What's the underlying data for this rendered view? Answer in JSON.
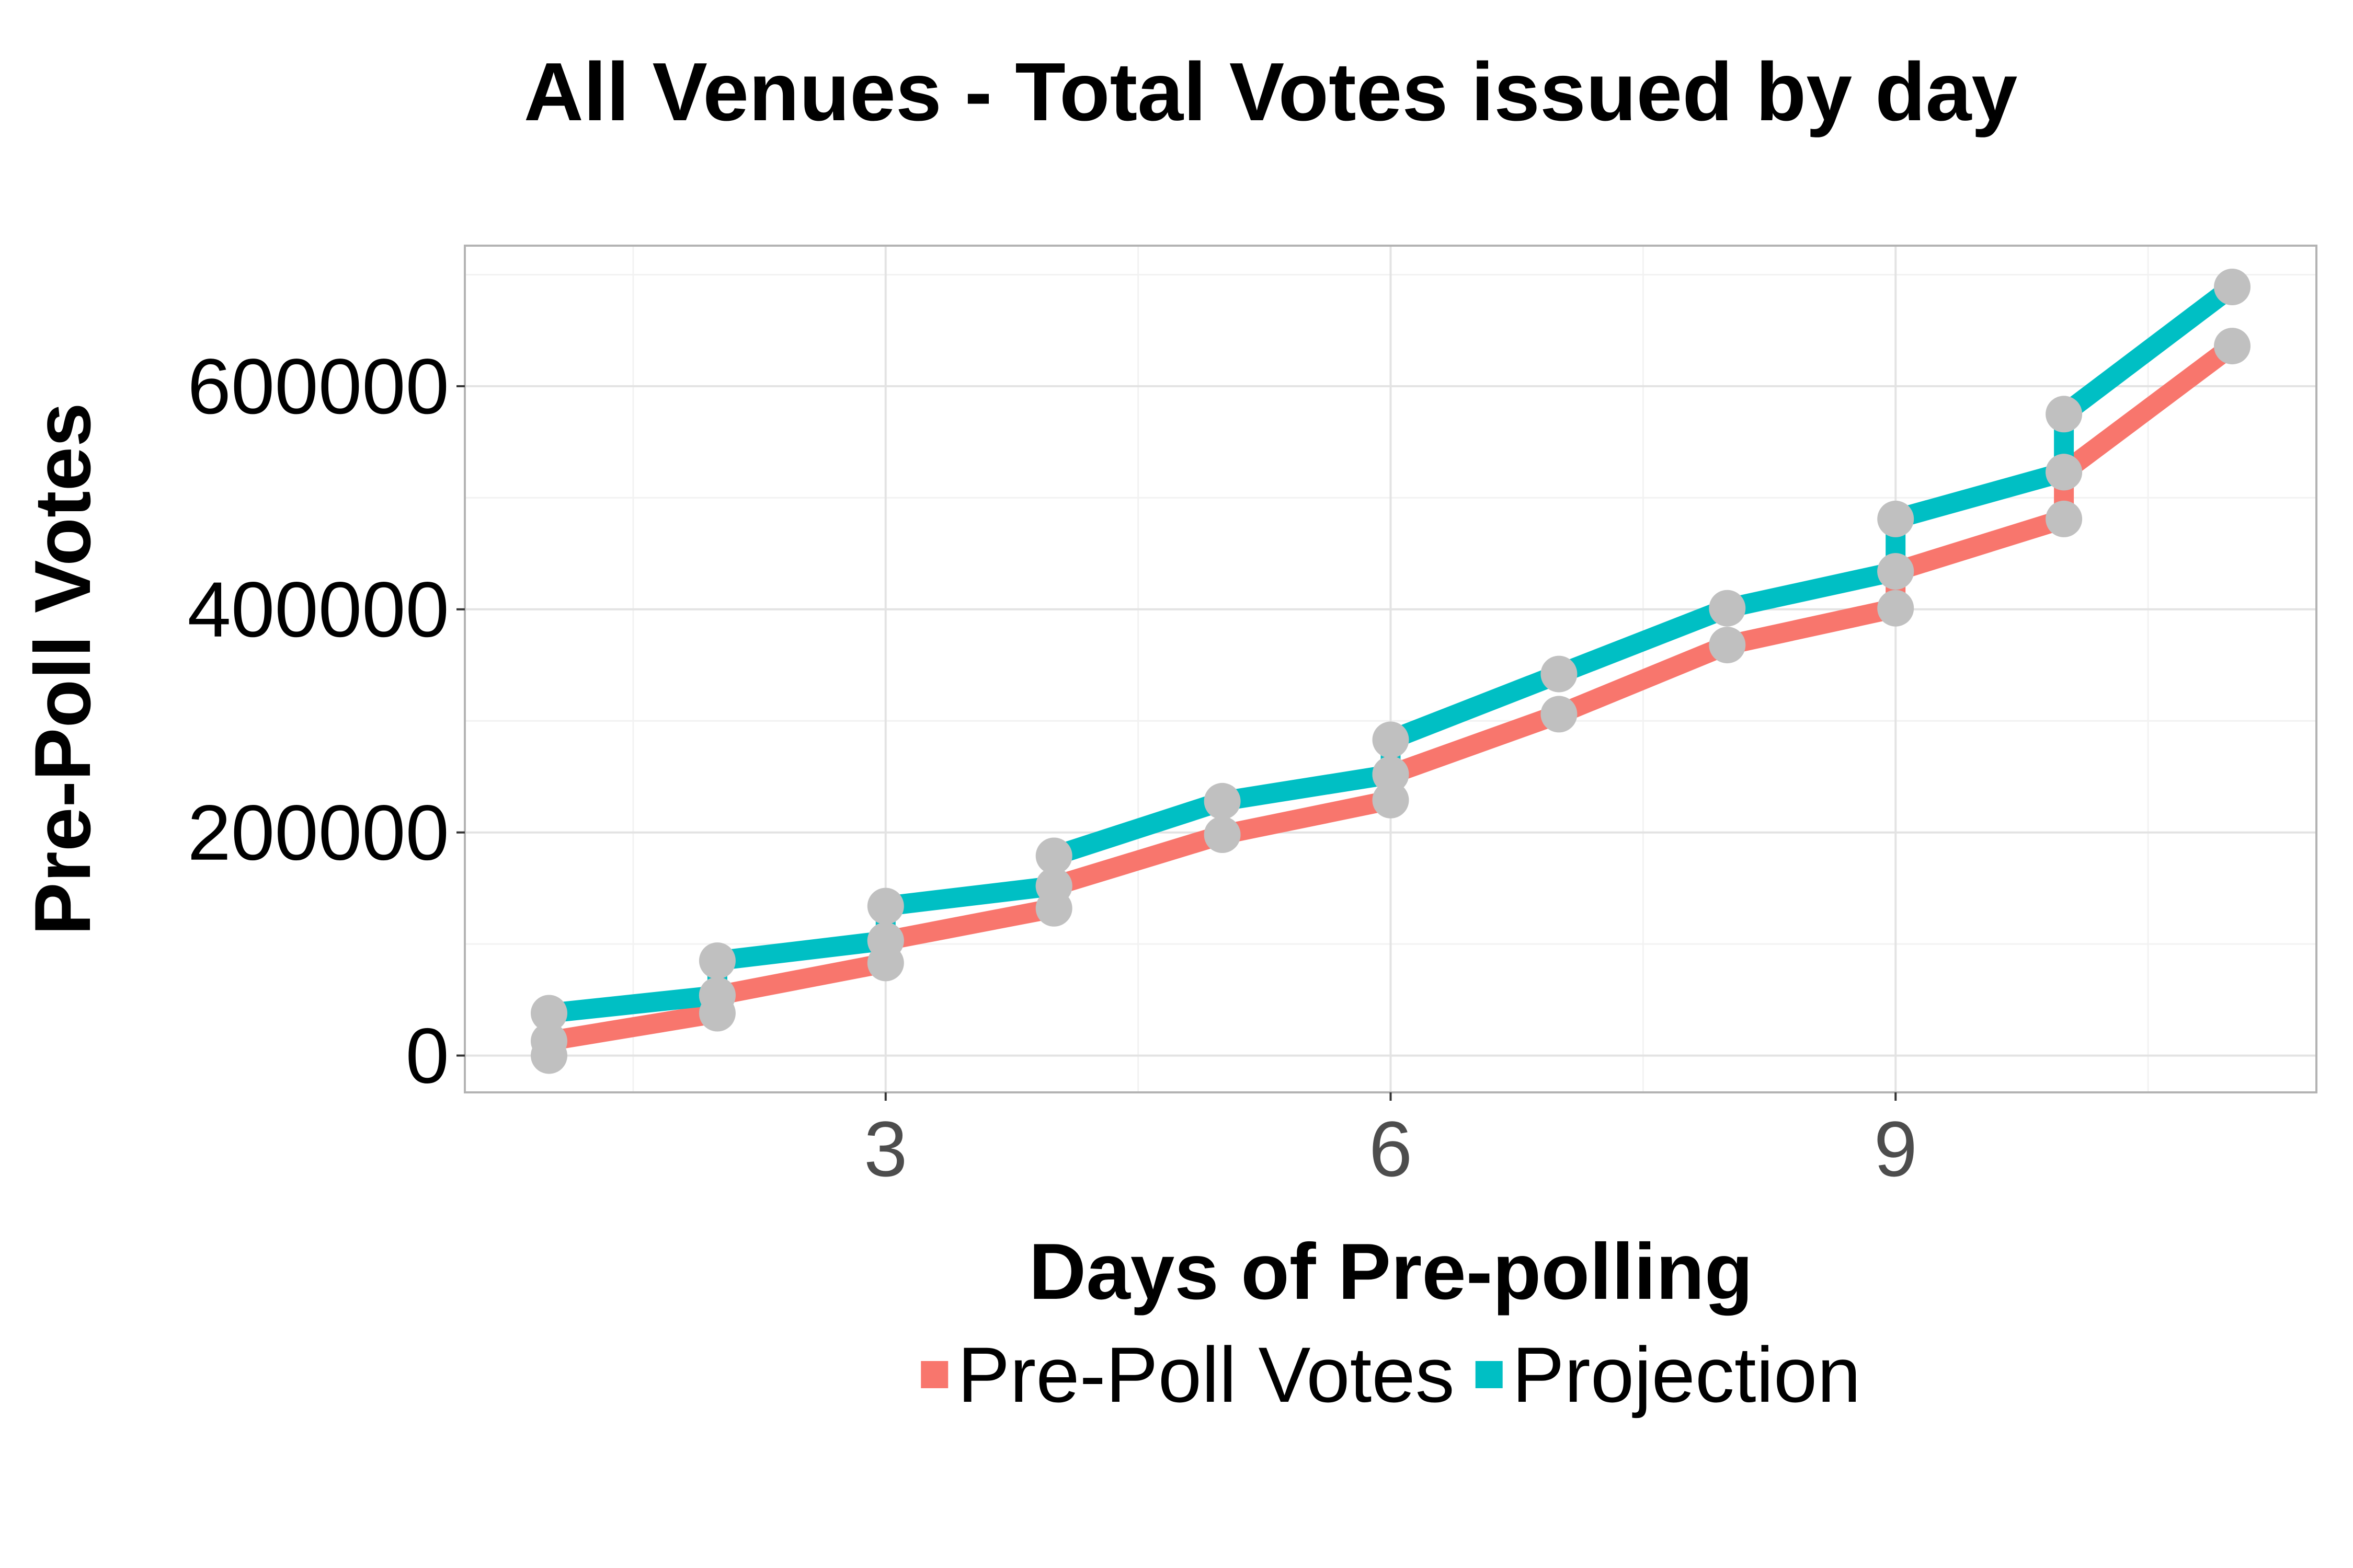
{
  "chart_data": {
    "type": "line",
    "title": "All Venues - Total Votes issued by day",
    "xlabel": "Days of Pre-polling",
    "ylabel": "Pre-Poll Votes",
    "xlim": [
      0.5,
      11.5
    ],
    "ylim": [
      -33000,
      726000
    ],
    "x_ticks": [
      3,
      6,
      9
    ],
    "x_tick_labels": [
      "3",
      "6",
      "9"
    ],
    "y_ticks": [
      0,
      200000,
      400000,
      600000
    ],
    "y_tick_labels": [
      "0",
      "200000",
      "400000",
      "600000"
    ],
    "grid": true,
    "legend_position": "bottom",
    "point_color": "#c0c0c0",
    "series": [
      {
        "name": "Pre-Poll Votes",
        "color": "#F8766D",
        "points": [
          {
            "x": 1,
            "y": 0
          },
          {
            "x": 1,
            "y": 13000
          },
          {
            "x": 2,
            "y": 38000
          },
          {
            "x": 2,
            "y": 54000
          },
          {
            "x": 3,
            "y": 83000
          },
          {
            "x": 3,
            "y": 103000
          },
          {
            "x": 4,
            "y": 132000
          },
          {
            "x": 4,
            "y": 152000
          },
          {
            "x": 5,
            "y": 198000
          },
          {
            "x": 6,
            "y": 229000
          },
          {
            "x": 6,
            "y": 252000
          },
          {
            "x": 7,
            "y": 306000
          },
          {
            "x": 8,
            "y": 368000
          },
          {
            "x": 9,
            "y": 401000
          },
          {
            "x": 9,
            "y": 434000
          },
          {
            "x": 10,
            "y": 481000
          },
          {
            "x": 10,
            "y": 523000
          },
          {
            "x": 11,
            "y": 636000
          }
        ]
      },
      {
        "name": "Projection",
        "color": "#00BFC4",
        "points": [
          {
            "x": 1,
            "y": 38000
          },
          {
            "x": 2,
            "y": 54000
          },
          {
            "x": 2,
            "y": 85000
          },
          {
            "x": 3,
            "y": 103000
          },
          {
            "x": 3,
            "y": 134000
          },
          {
            "x": 4,
            "y": 152000
          },
          {
            "x": 4,
            "y": 179000
          },
          {
            "x": 5,
            "y": 228000
          },
          {
            "x": 6,
            "y": 252000
          },
          {
            "x": 6,
            "y": 283000
          },
          {
            "x": 7,
            "y": 342000
          },
          {
            "x": 8,
            "y": 401000
          },
          {
            "x": 9,
            "y": 434000
          },
          {
            "x": 9,
            "y": 481000
          },
          {
            "x": 10,
            "y": 523000
          },
          {
            "x": 10,
            "y": 575000
          },
          {
            "x": 11,
            "y": 689000
          }
        ]
      }
    ]
  }
}
